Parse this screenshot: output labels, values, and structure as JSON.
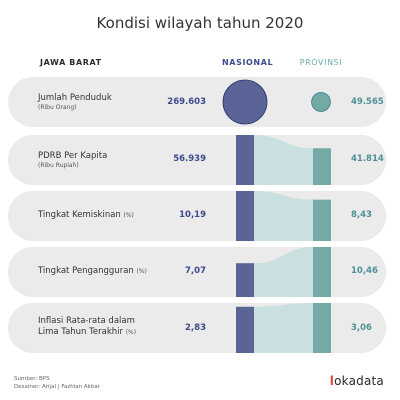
{
  "title": "Kondisi wilayah tahun 2020",
  "headers": {
    "region": "JAWA BARAT",
    "national": "NASIONAL",
    "province": "PROVINSI"
  },
  "rows": [
    {
      "label": "Jumlah Penduduk",
      "unit": "",
      "sub": "(Ribu Orang)",
      "nasional": "269.603",
      "provinsi": "49.565"
    },
    {
      "label": "PDRB Per Kapita",
      "unit": "",
      "sub": "(Ribu Rupiah)",
      "nasional": "56.939",
      "provinsi": "41.814"
    },
    {
      "label": "Tingkat Kemiskinan",
      "unit": "(%)",
      "sub": "",
      "nasional": "10,19",
      "provinsi": "8,43"
    },
    {
      "label": "Tingkat Pengangguran",
      "unit": "(%)",
      "sub": "",
      "nasional": "7,07",
      "provinsi": "10,46"
    },
    {
      "label": "Inflasi Rata-rata dalam Lima Tahun Terakhir",
      "unit": "(%)",
      "sub": "",
      "nasional": "2,83",
      "provinsi": "3,06"
    }
  ],
  "chart_data": {
    "type": "table",
    "title": "Kondisi wilayah tahun 2020",
    "categories": [
      "Jumlah Penduduk",
      "PDRB Per Kapita",
      "Tingkat Kemiskinan",
      "Tingkat Pengangguran",
      "Inflasi Rata-rata dalam Lima Tahun Terakhir"
    ],
    "series": [
      {
        "name": "NASIONAL",
        "values": [
          269603,
          56939,
          10.19,
          7.07,
          2.83
        ]
      },
      {
        "name": "PROVINSI",
        "values": [
          49565,
          41814,
          8.43,
          10.46,
          3.06
        ]
      }
    ]
  },
  "colors": {
    "national": "#5a6496",
    "province": "#73aaa6",
    "flow": "#c6dede",
    "row_bg": "#ebebeb"
  },
  "footer": {
    "source": "Sumber: BPS",
    "credit": "Desainer: Arijal | Fazhlan Akbar"
  },
  "logo": {
    "mark": "l",
    "text": "okadata"
  }
}
